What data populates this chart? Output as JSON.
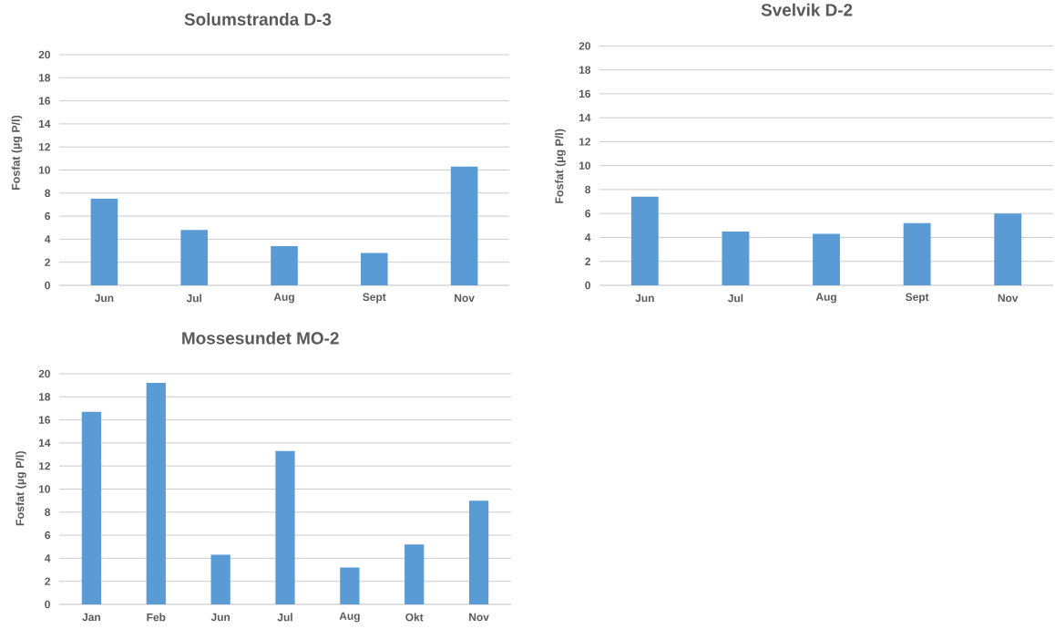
{
  "chart_data": [
    {
      "type": "bar",
      "title": "Solumstranda D-3",
      "ylabel": "Fosfat (µg P/l)",
      "categories": [
        "Jun",
        "Jul",
        "Aug",
        "Sept",
        "Nov"
      ],
      "values": [
        7.5,
        4.8,
        3.4,
        2.8,
        10.3
      ],
      "color": "#5b9bd5",
      "ylim": [
        0,
        20
      ],
      "yticks": [
        0,
        2,
        4,
        6,
        8,
        10,
        12,
        14,
        16,
        18,
        20
      ],
      "grid": "y"
    },
    {
      "type": "bar",
      "title": "Svelvik D-2",
      "ylabel": "Fosfat (µg P/l)",
      "categories": [
        "Jun",
        "Jul",
        "Aug",
        "Sept",
        "Nov"
      ],
      "values": [
        7.4,
        4.5,
        4.3,
        5.2,
        6.0
      ],
      "color": "#5b9bd5",
      "ylim": [
        0,
        20
      ],
      "yticks": [
        0,
        2,
        4,
        6,
        8,
        10,
        12,
        14,
        16,
        18,
        20
      ],
      "grid": "y"
    },
    {
      "type": "bar",
      "title": "Mossesundet MO-2",
      "ylabel": "Fosfat (µg P/l)",
      "categories": [
        "Jan",
        "Feb",
        "Jun",
        "Jul",
        "Aug",
        "Okt",
        "Nov"
      ],
      "values": [
        16.7,
        19.2,
        4.3,
        13.3,
        3.2,
        5.2,
        9.0
      ],
      "color": "#5b9bd5",
      "ylim": [
        0,
        20
      ],
      "yticks": [
        0,
        2,
        4,
        6,
        8,
        10,
        12,
        14,
        16,
        18,
        20
      ],
      "grid": "y"
    }
  ]
}
